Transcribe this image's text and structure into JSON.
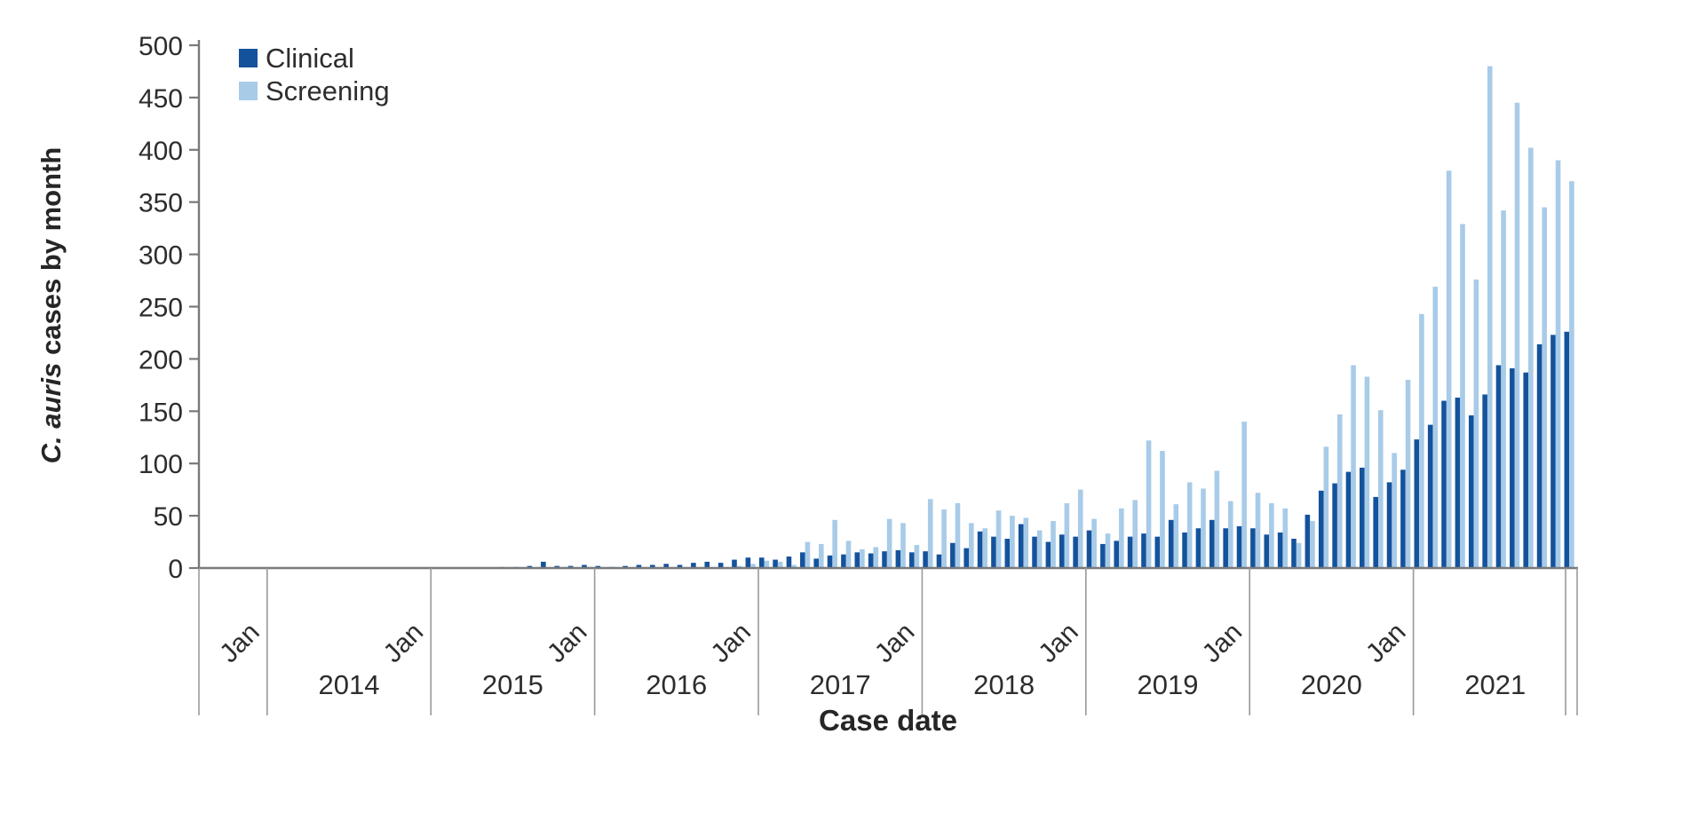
{
  "figure": {
    "legend": {
      "clinical_label": "Clinical",
      "screening_label": "Screening"
    }
  },
  "chart_data": {
    "type": "bar",
    "title": "",
    "xlabel": "Case date",
    "ylabel": "C. auris cases by month",
    "ylabel_italic": "C. auris",
    "ylabel_rest": " cases by month",
    "grid": false,
    "legend_position": "top-left",
    "y_axis": {
      "min": 0,
      "max": 500,
      "step": 50,
      "tick_labels": [
        "0",
        "50",
        "100",
        "150",
        "200",
        "250",
        "300",
        "350",
        "400",
        "450",
        "500"
      ]
    },
    "x_axis": {
      "start_month": "2013-08",
      "end_month": "2021-12",
      "months_total": 101,
      "jan_tick_label": "Jan",
      "year_labels": [
        "2014",
        "2015",
        "2016",
        "2017",
        "2018",
        "2019",
        "2020",
        "2021"
      ]
    },
    "colors": {
      "clinical": "#14529C",
      "screening": "#A8CBE8",
      "axis_line": "#77797C",
      "divider_line": "#97999C",
      "text": "#2D2D2F"
    },
    "series": [
      {
        "name": "Clinical",
        "color": "#14529C",
        "values": [
          0,
          0,
          0,
          0,
          0,
          0,
          0,
          0,
          0,
          0,
          0,
          0,
          0,
          0,
          0,
          0,
          0,
          0,
          0,
          0,
          0,
          0,
          1,
          1,
          2,
          6,
          2,
          2,
          3,
          2,
          1,
          2,
          3,
          3,
          4,
          3,
          5,
          6,
          5,
          8,
          10,
          10,
          8,
          11,
          15,
          9,
          12,
          13,
          15,
          14,
          16,
          17,
          15,
          16,
          13,
          24,
          19,
          35,
          30,
          28,
          42,
          30,
          25,
          32,
          30,
          36,
          23,
          26,
          30,
          33,
          30,
          46,
          34,
          38,
          46,
          38,
          40,
          38,
          32,
          34,
          28,
          51,
          74,
          81,
          92,
          96,
          68,
          82,
          94,
          123,
          137,
          160,
          163,
          146,
          166,
          194,
          191,
          187,
          214,
          223,
          226
        ]
      },
      {
        "name": "Screening",
        "color": "#A8CBE8",
        "values": [
          0,
          0,
          0,
          0,
          0,
          0,
          0,
          0,
          0,
          0,
          0,
          0,
          0,
          0,
          0,
          0,
          0,
          0,
          0,
          0,
          0,
          0,
          0,
          0,
          0,
          0,
          0,
          0,
          1,
          0,
          0,
          0,
          0,
          0,
          0,
          0,
          0,
          1,
          1,
          2,
          4,
          7,
          6,
          3,
          25,
          23,
          46,
          26,
          18,
          20,
          47,
          43,
          22,
          66,
          56,
          62,
          43,
          38,
          55,
          50,
          48,
          36,
          45,
          62,
          75,
          47,
          33,
          57,
          65,
          122,
          112,
          61,
          82,
          76,
          93,
          64,
          140,
          72,
          62,
          57,
          24,
          45,
          116,
          147,
          194,
          183,
          151,
          110,
          180,
          243,
          269,
          380,
          329,
          276,
          480,
          342,
          445,
          402,
          345,
          390,
          370
        ]
      }
    ]
  }
}
